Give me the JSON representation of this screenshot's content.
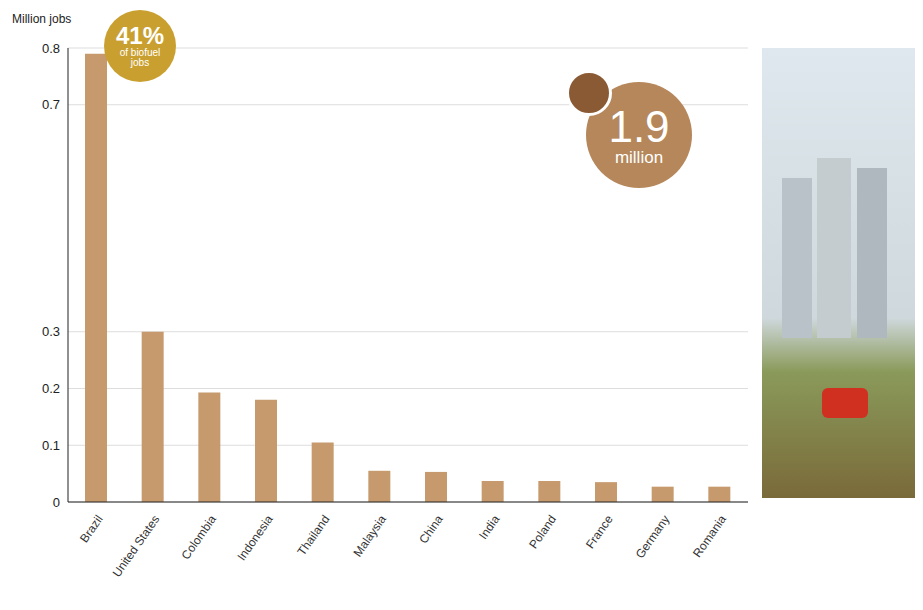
{
  "chart_data": {
    "type": "bar",
    "y_label": "Million jobs",
    "categories": [
      "Brazil",
      "United States",
      "Colombia",
      "Indonesia",
      "Thailand",
      "Malaysia",
      "China",
      "India",
      "Poland",
      "France",
      "Germany",
      "Romania"
    ],
    "values": [
      0.79,
      0.3,
      0.193,
      0.18,
      0.105,
      0.055,
      0.053,
      0.037,
      0.037,
      0.035,
      0.027,
      0.027
    ],
    "color": "#c69a6d",
    "ylim": [
      0,
      0.8
    ],
    "yticks": [
      0,
      0.1,
      0.2,
      0.3,
      0.7,
      0.8
    ],
    "grid": true,
    "annotations": [
      {
        "value": 41,
        "label": "41%",
        "text": "of biofuel jobs"
      },
      {
        "value": 1.9,
        "label": "1.9",
        "text": "million"
      }
    ]
  }
}
